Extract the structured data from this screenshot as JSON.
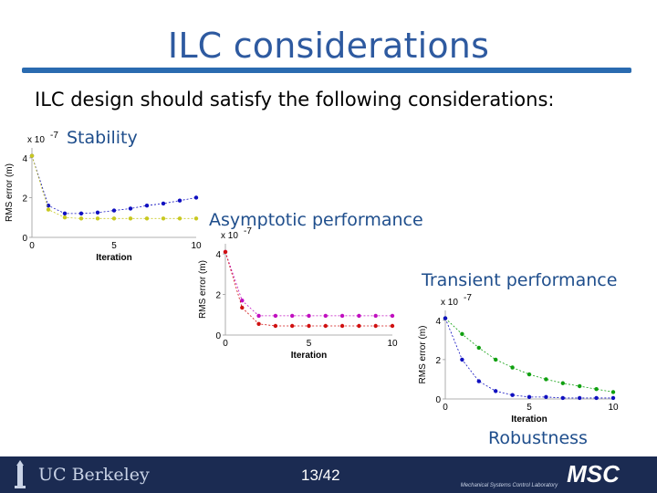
{
  "slide": {
    "title": "ILC considerations",
    "intro": "ILC design should satisfy the following considerations:",
    "labels": {
      "stability": "Stability",
      "asymptotic": "Asymptotic performance",
      "transient": "Transient performance",
      "robustness": "Robustness"
    },
    "page_number": "13/42",
    "footer_logo": "UC Berkeley",
    "footer_lab": "MSC",
    "footer_lab_sub": "Mechanical Systems Control Laboratory",
    "colors": {
      "title": "#2e5aa0",
      "rule": "#2a6bb0",
      "footer": "#1b2b52"
    }
  },
  "chart_data": [
    {
      "type": "line",
      "scale_label": "x 10",
      "scale_exp": "-7",
      "xlabel": "Iteration",
      "ylabel": "RMS error (m)",
      "xlim": [
        0,
        10
      ],
      "ylim": [
        0,
        4.5
      ],
      "xticks": [
        "0",
        "5",
        "10"
      ],
      "yticks": [
        "0",
        "2",
        "4"
      ],
      "x": [
        0,
        1,
        2,
        3,
        4,
        5,
        6,
        7,
        8,
        9,
        10
      ],
      "series": [
        {
          "color": "#1010c0",
          "values": [
            4.1,
            1.6,
            1.2,
            1.2,
            1.25,
            1.35,
            1.45,
            1.6,
            1.7,
            1.85,
            2.0
          ]
        },
        {
          "color": "#c8c820",
          "values": [
            4.1,
            1.4,
            1.0,
            0.95,
            0.95,
            0.95,
            0.95,
            0.95,
            0.95,
            0.95,
            0.95
          ]
        }
      ]
    },
    {
      "type": "line",
      "scale_label": "x 10",
      "scale_exp": "-7",
      "xlabel": "Iteration",
      "ylabel": "RMS error (m)",
      "xlim": [
        0,
        10
      ],
      "ylim": [
        0,
        4.5
      ],
      "xticks": [
        "0",
        "5",
        "10"
      ],
      "yticks": [
        "0",
        "2",
        "4"
      ],
      "x": [
        0,
        1,
        2,
        3,
        4,
        5,
        6,
        7,
        8,
        9,
        10
      ],
      "series": [
        {
          "color": "#c010c0",
          "values": [
            4.1,
            1.7,
            0.95,
            0.95,
            0.95,
            0.95,
            0.95,
            0.95,
            0.95,
            0.95,
            0.95
          ]
        },
        {
          "color": "#d01010",
          "values": [
            4.1,
            1.35,
            0.55,
            0.45,
            0.45,
            0.45,
            0.45,
            0.45,
            0.45,
            0.45,
            0.45
          ]
        }
      ]
    },
    {
      "type": "line",
      "scale_label": "x 10",
      "scale_exp": "-7",
      "xlabel": "Iteration",
      "ylabel": "RMS error (m)",
      "xlim": [
        0,
        10
      ],
      "ylim": [
        0,
        4.5
      ],
      "xticks": [
        "0",
        "5",
        "10"
      ],
      "yticks": [
        "0",
        "2",
        "4"
      ],
      "x": [
        0,
        1,
        2,
        3,
        4,
        5,
        6,
        7,
        8,
        9,
        10
      ],
      "series": [
        {
          "color": "#10a010",
          "values": [
            4.1,
            3.3,
            2.6,
            2.0,
            1.6,
            1.25,
            1.0,
            0.8,
            0.65,
            0.5,
            0.35
          ]
        },
        {
          "color": "#1010c0",
          "values": [
            4.1,
            2.0,
            0.9,
            0.4,
            0.2,
            0.1,
            0.1,
            0.05,
            0.05,
            0.05,
            0.05
          ]
        }
      ]
    }
  ]
}
